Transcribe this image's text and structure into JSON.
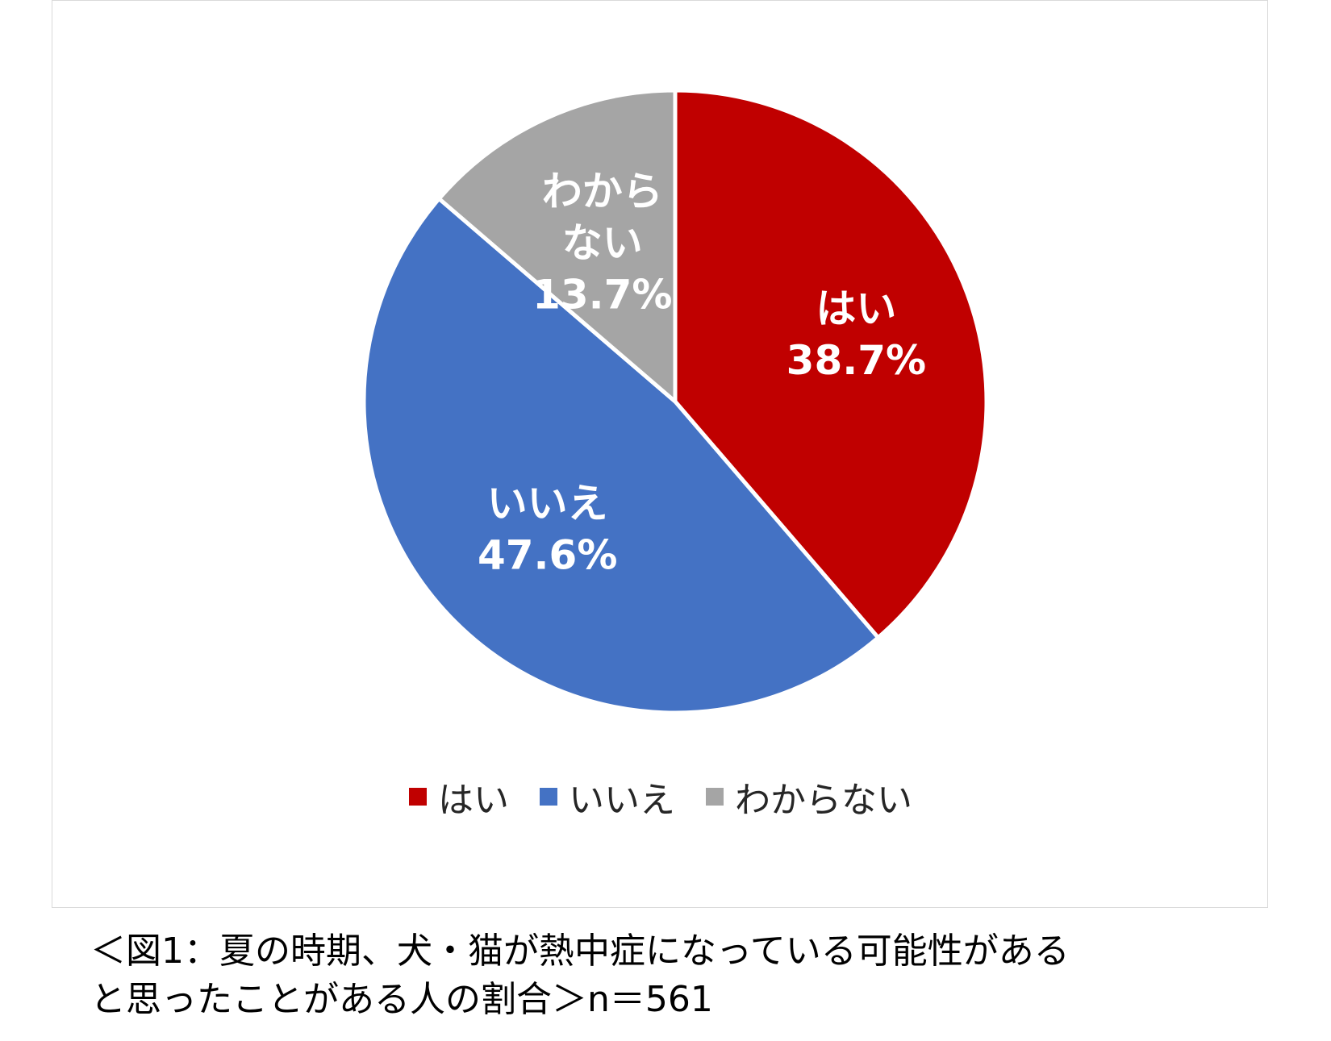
{
  "chart_data": {
    "type": "pie",
    "start_angle_deg": 0,
    "direction": "clockwise",
    "slices": [
      {
        "label_lines": [
          "はい"
        ],
        "value": 38.7,
        "value_label": "38.7%",
        "color": "#c00000"
      },
      {
        "label_lines": [
          "いいえ"
        ],
        "value": 47.6,
        "value_label": "47.6%",
        "color": "#4472c4"
      },
      {
        "label_lines": [
          "わから",
          "ない"
        ],
        "value": 13.7,
        "value_label": "13.7%",
        "color": "#a5a5a5"
      }
    ],
    "legend": {
      "placement": "bottom",
      "items": [
        {
          "label": "はい",
          "color": "#c00000"
        },
        {
          "label": "いいえ",
          "color": "#4472c4"
        },
        {
          "label": "わからない",
          "color": "#a5a5a5"
        }
      ]
    }
  },
  "caption": {
    "line1": "＜図1：夏の時期、犬・猫が熱中症になっている可能性がある",
    "line2": "と思ったことがある人の割合＞n＝561"
  }
}
